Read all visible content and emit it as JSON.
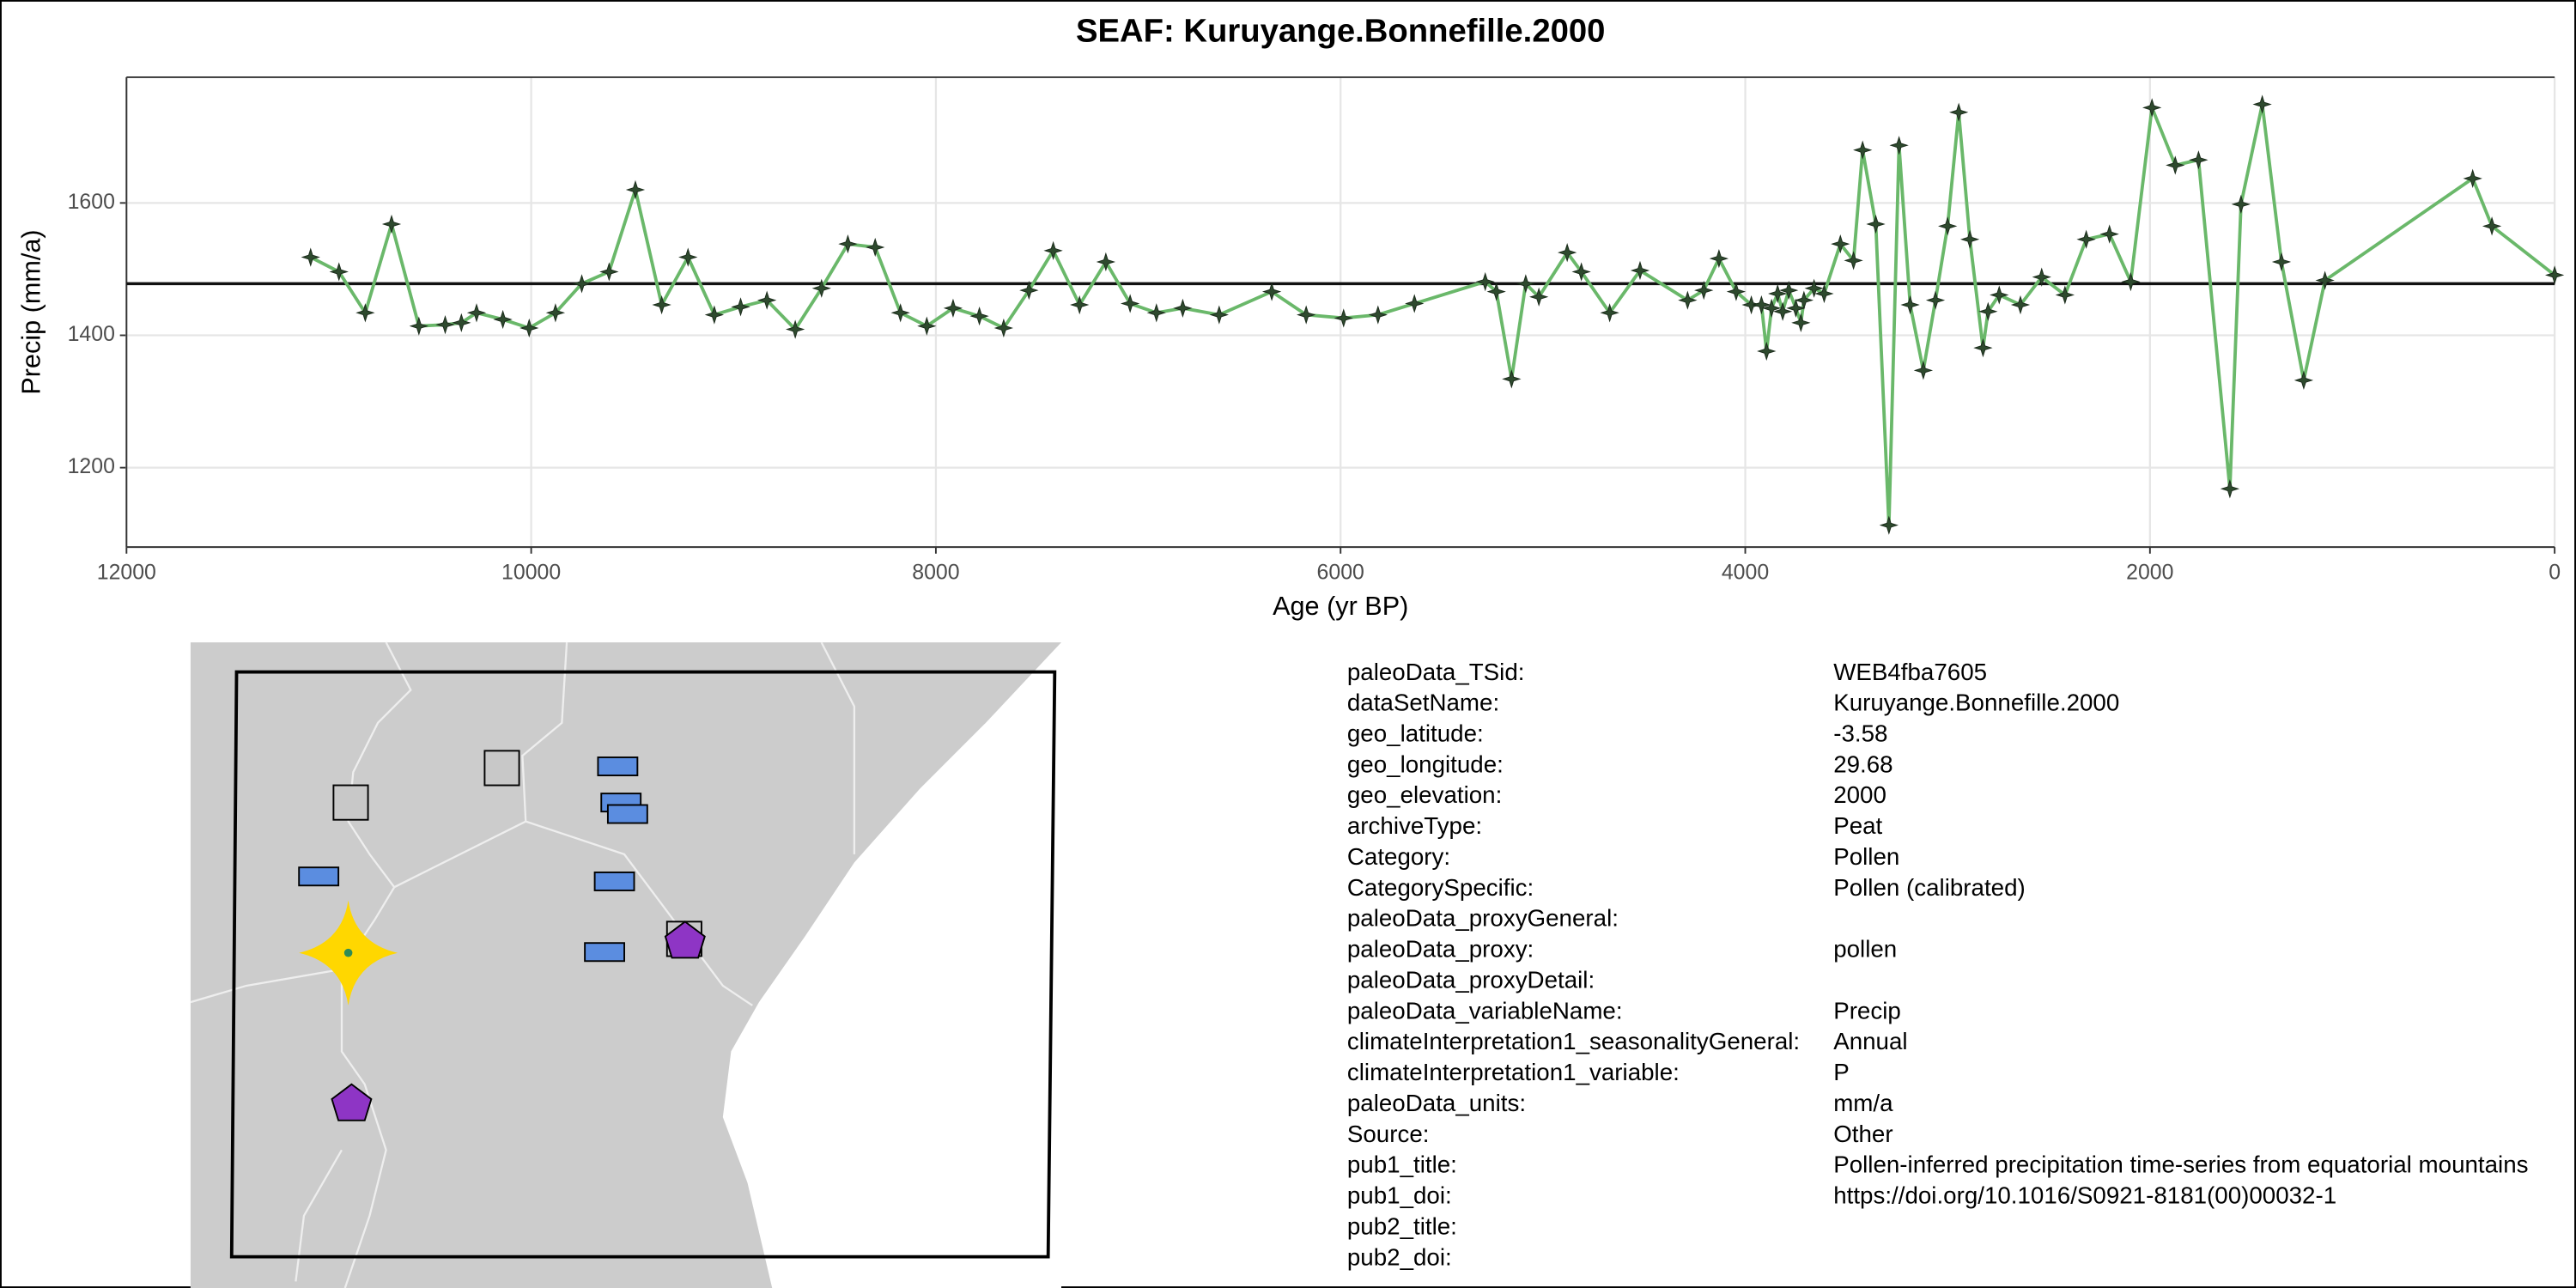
{
  "chart_data": {
    "type": "line",
    "title": "SEAF: Kuruyange.Bonnefille.2000",
    "x_label": "Age (yr BP)",
    "y_label": "Precip (mm/a)",
    "x": [
      11090,
      10950,
      10820,
      10690,
      10555,
      10425,
      10345,
      10270,
      10140,
      10010,
      9880,
      9750,
      9615,
      9485,
      9355,
      9225,
      9095,
      8965,
      8835,
      8695,
      8565,
      8435,
      8300,
      8175,
      8045,
      7915,
      7785,
      7665,
      7540,
      7420,
      7290,
      7160,
      7040,
      6910,
      6780,
      6600,
      6340,
      6170,
      5985,
      5815,
      5635,
      5285,
      5230,
      5155,
      5085,
      5020,
      4880,
      4810,
      4670,
      4520,
      4285,
      4205,
      4130,
      4045,
      3970,
      3920,
      3895,
      3870,
      3840,
      3815,
      3785,
      3750,
      3725,
      3710,
      3660,
      3610,
      3530,
      3465,
      3420,
      3355,
      3290,
      3240,
      3185,
      3120,
      3060,
      3000,
      2945,
      2890,
      2825,
      2800,
      2745,
      2640,
      2535,
      2420,
      2315,
      2200,
      2095,
      1990,
      1875,
      1760,
      1605,
      1550,
      1445,
      1350,
      1240,
      1135,
      405,
      310,
      0
    ],
    "values": [
      1518,
      1496,
      1434,
      1568,
      1414,
      1416,
      1419,
      1434,
      1424,
      1411,
      1434,
      1478,
      1496,
      1620,
      1446,
      1518,
      1431,
      1443,
      1453,
      1409,
      1471,
      1538,
      1533,
      1434,
      1414,
      1441,
      1429,
      1411,
      1468,
      1528,
      1446,
      1511,
      1448,
      1434,
      1441,
      1431,
      1466,
      1431,
      1426,
      1431,
      1448,
      1481,
      1466,
      1334,
      1478,
      1458,
      1525,
      1496,
      1434,
      1498,
      1453,
      1468,
      1516,
      1466,
      1446,
      1446,
      1376,
      1441,
      1463,
      1436,
      1468,
      1441,
      1419,
      1453,
      1471,
      1463,
      1538,
      1513,
      1680,
      1568,
      1113,
      1687,
      1446,
      1347,
      1453,
      1565,
      1737,
      1545,
      1381,
      1436,
      1461,
      1446,
      1488,
      1461,
      1545,
      1553,
      1481,
      1744,
      1657,
      1665,
      1168,
      1598,
      1749,
      1511,
      1332,
      1483,
      1637,
      1565,
      1491
    ],
    "color": "#6ab86a",
    "marker_color": "#2e4a2e",
    "mean": 1478,
    "xlim": [
      12000,
      0
    ],
    "xticks": [
      12000,
      10000,
      8000,
      6000,
      4000,
      2000,
      0
    ],
    "ylim": [
      1080,
      1790
    ],
    "yticks": [
      1200,
      1400,
      1600
    ],
    "grid": true
  },
  "metadata": {
    "rows": [
      [
        "paleoData_TSid:",
        "WEB4fba7605"
      ],
      [
        "dataSetName:",
        "Kuruyange.Bonnefille.2000"
      ],
      [
        "geo_latitude:",
        "-3.58"
      ],
      [
        "geo_longitude:",
        "29.68"
      ],
      [
        "geo_elevation:",
        "2000"
      ],
      [
        "archiveType:",
        "Peat"
      ],
      [
        "Category:",
        "Pollen"
      ],
      [
        "CategorySpecific:",
        "Pollen (calibrated)"
      ],
      [
        "paleoData_proxyGeneral:"
      ],
      [
        "paleoData_proxy:",
        "pollen"
      ],
      [
        "paleoData_proxyDetail:"
      ],
      [
        "paleoData_variableName:",
        "Precip"
      ],
      [
        "climateInterpretation1_seasonalityGeneral:",
        "Annual"
      ],
      [
        "climateInterpretation1_variable:",
        "P"
      ],
      [
        "paleoData_units:",
        "mm/a"
      ],
      [
        "Source:",
        "Other"
      ],
      [
        "pub1_title:",
        "Pollen-inferred precipitation time-series from equatorial mountains"
      ],
      [
        "pub1_doi:",
        "https://doi.org/10.1016/S0921-8181(00)00032-1"
      ],
      [
        "pub2_title:"
      ],
      [
        "pub2_doi:"
      ]
    ]
  }
}
